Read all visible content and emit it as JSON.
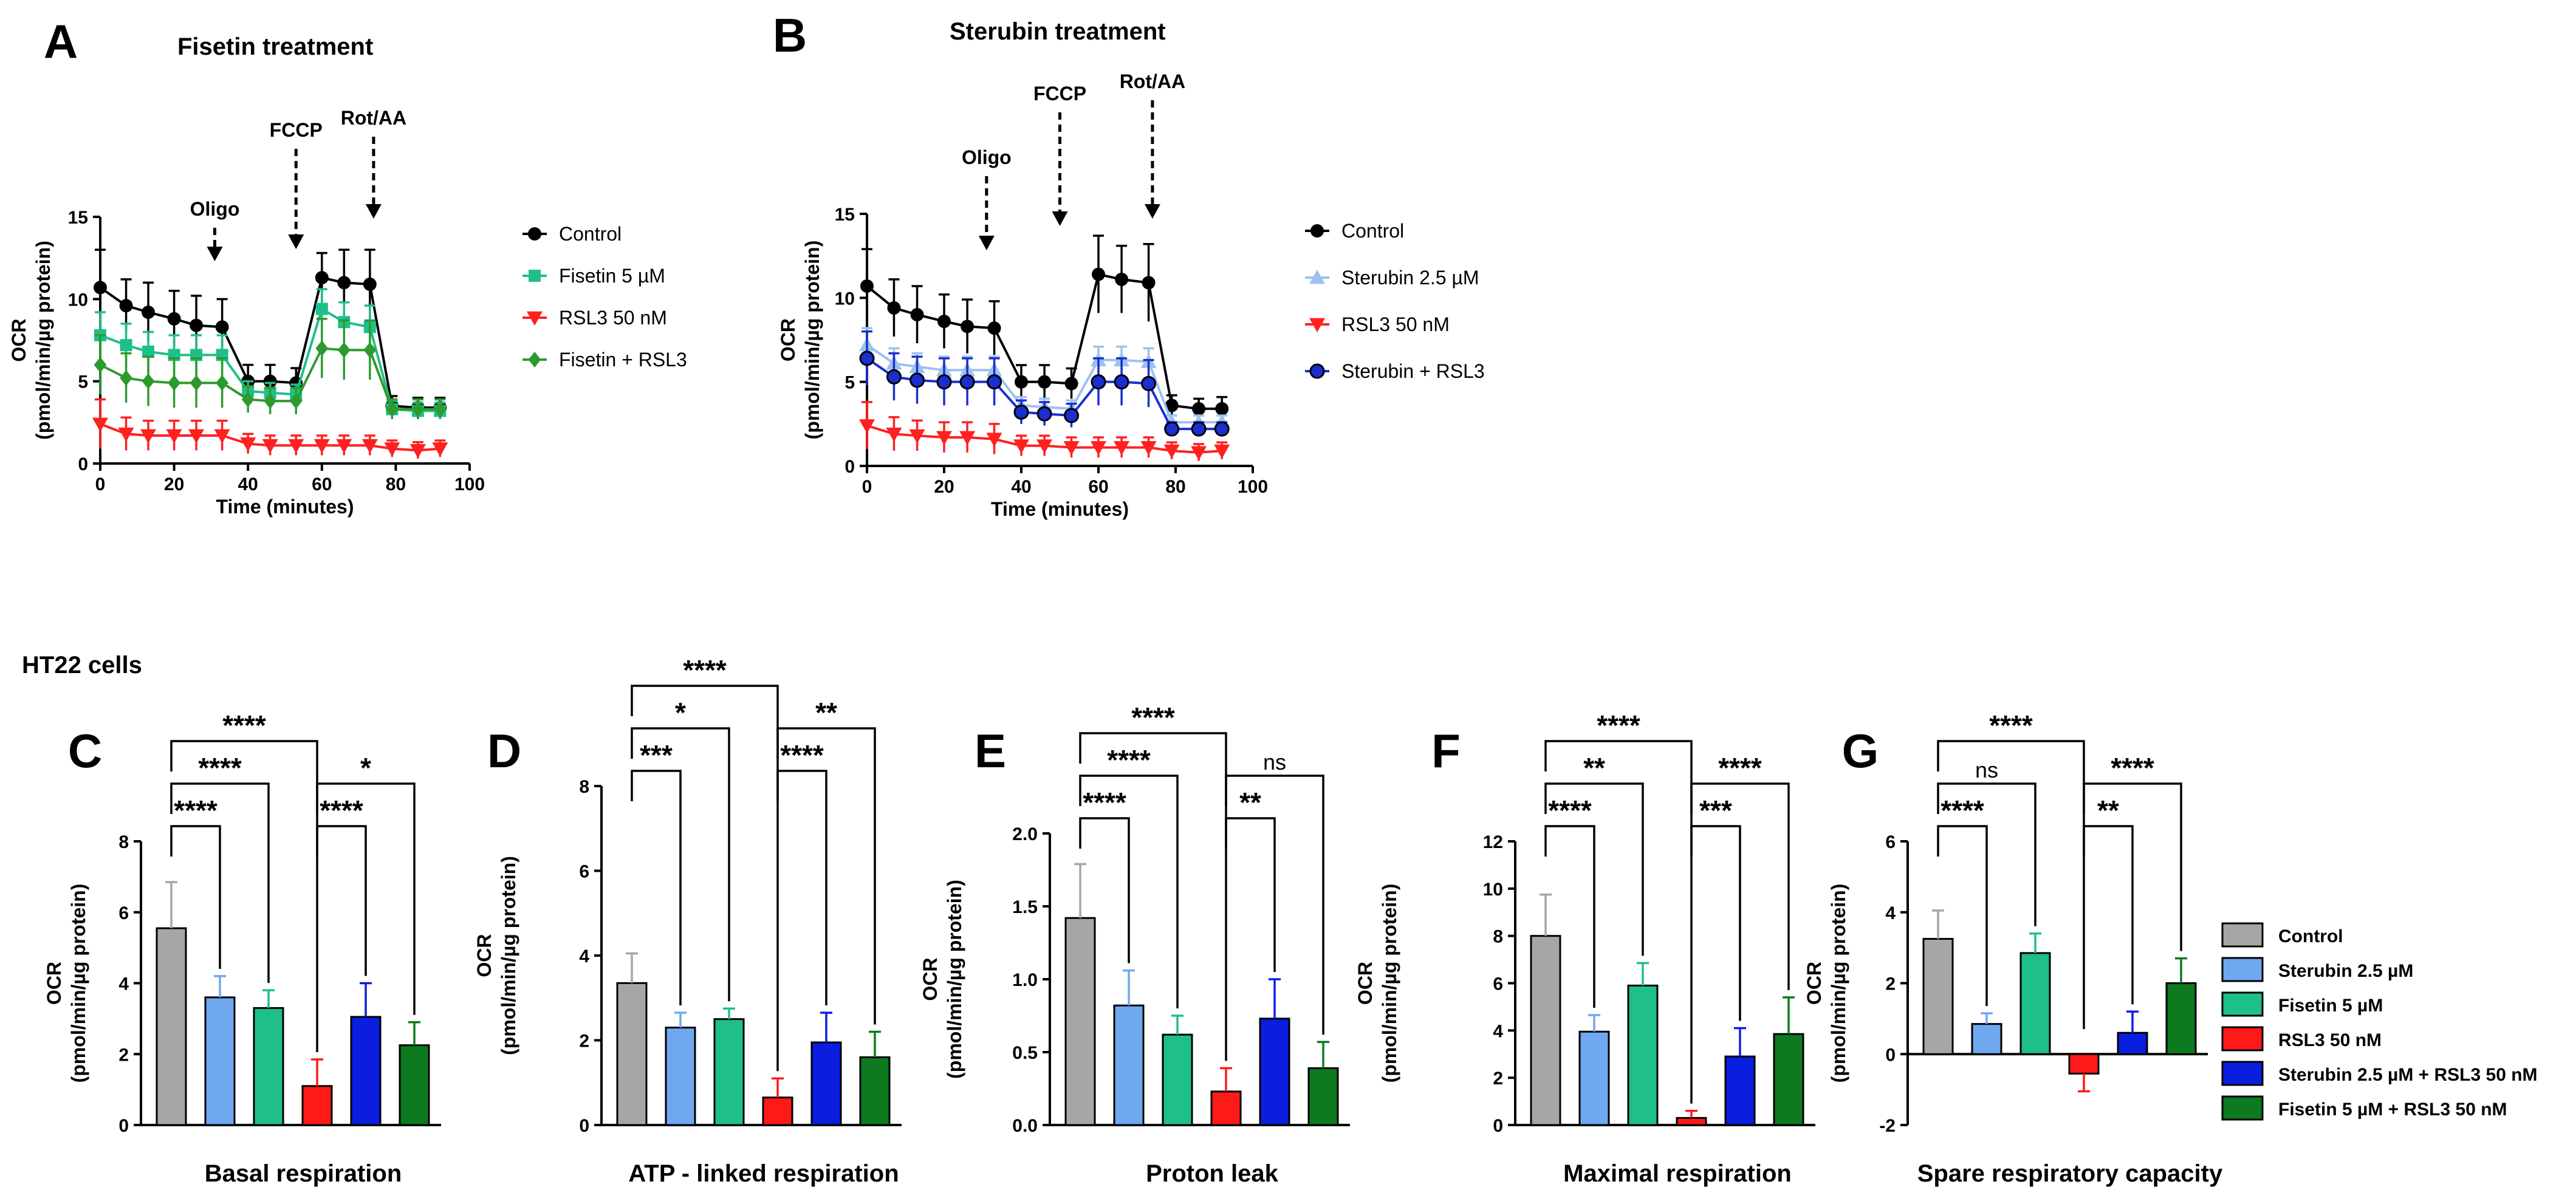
{
  "figure": {
    "section_label": "HT22 cells"
  },
  "chart_data": [
    {
      "panel": "A",
      "type": "line",
      "title": "Fisetin treatment",
      "xlabel": "Time (minutes)",
      "ylabel": [
        "OCR",
        "(pmol/min/µg protein)"
      ],
      "xlim": [
        0,
        100
      ],
      "ylim": [
        0,
        15
      ],
      "xticks": [
        0,
        20,
        40,
        60,
        80,
        100
      ],
      "yticks": [
        0,
        5,
        10,
        15
      ],
      "annotations": [
        {
          "label": "Oligo",
          "x": 31
        },
        {
          "label": "FCCP",
          "x": 53
        },
        {
          "label": "Rot/AA",
          "x": 74
        }
      ],
      "x": [
        0,
        7,
        13,
        20,
        26,
        33,
        40,
        46,
        53,
        60,
        66,
        73,
        79,
        86,
        92
      ],
      "series": [
        {
          "name": "Control",
          "color": "#000000",
          "marker": "circle",
          "values": [
            10.7,
            9.6,
            9.2,
            8.8,
            8.4,
            8.3,
            5.0,
            5.0,
            4.9,
            11.3,
            11.0,
            10.9,
            3.5,
            3.4,
            3.4
          ],
          "err": [
            2.3,
            1.6,
            1.8,
            1.7,
            1.8,
            1.7,
            1.0,
            1.0,
            0.9,
            1.5,
            2.0,
            2.1,
            0.6,
            0.6,
            0.6
          ]
        },
        {
          "name": "Fisetin 5 µM",
          "color": "#1fbf8a",
          "marker": "square",
          "values": [
            7.8,
            7.2,
            6.8,
            6.6,
            6.6,
            6.6,
            4.4,
            4.3,
            4.2,
            9.4,
            8.6,
            8.3,
            3.3,
            3.2,
            3.2
          ],
          "err": [
            1.4,
            1.3,
            1.2,
            1.2,
            1.2,
            1.2,
            0.6,
            0.6,
            0.6,
            1.2,
            1.2,
            1.3,
            0.5,
            0.5,
            0.5
          ]
        },
        {
          "name": "RSL3 50 nM",
          "color": "#ff2020",
          "marker": "triangle-down",
          "values": [
            2.4,
            1.8,
            1.7,
            1.7,
            1.7,
            1.7,
            1.2,
            1.1,
            1.1,
            1.1,
            1.1,
            1.1,
            0.9,
            0.8,
            0.9
          ],
          "err": [
            1.5,
            1.0,
            0.9,
            0.9,
            0.9,
            0.9,
            0.6,
            0.6,
            0.6,
            0.6,
            0.6,
            0.6,
            0.5,
            0.5,
            0.5
          ]
        },
        {
          "name": "Fisetin + RSL3",
          "color": "#2e9a2e",
          "marker": "diamond",
          "values": [
            6.0,
            5.2,
            5.0,
            4.9,
            4.9,
            4.9,
            3.9,
            3.8,
            3.8,
            7.0,
            6.9,
            6.9,
            3.3,
            3.3,
            3.3
          ],
          "err": [
            1.8,
            1.5,
            1.5,
            1.5,
            1.5,
            1.5,
            0.8,
            0.8,
            0.8,
            1.8,
            1.8,
            1.8,
            0.6,
            0.6,
            0.6
          ]
        }
      ]
    },
    {
      "panel": "B",
      "type": "line",
      "title": "Sterubin treatment",
      "xlabel": "Time (minutes)",
      "ylabel": [
        "OCR",
        "(pmol/min/µg protein)"
      ],
      "xlim": [
        0,
        100
      ],
      "ylim": [
        0,
        15
      ],
      "xticks": [
        0,
        20,
        40,
        60,
        80,
        100
      ],
      "yticks": [
        0,
        5,
        10,
        15
      ],
      "annotations": [
        {
          "label": "Oligo",
          "x": 31
        },
        {
          "label": "FCCP",
          "x": 50
        },
        {
          "label": "Rot/AA",
          "x": 74
        }
      ],
      "x": [
        0,
        7,
        13,
        20,
        26,
        33,
        40,
        46,
        53,
        60,
        66,
        73,
        79,
        86,
        92
      ],
      "series": [
        {
          "name": "Control",
          "color": "#000000",
          "marker": "circle",
          "values": [
            10.7,
            9.4,
            9.0,
            8.6,
            8.3,
            8.2,
            5.0,
            5.0,
            4.9,
            11.4,
            11.1,
            10.9,
            3.6,
            3.4,
            3.4
          ],
          "err": [
            2.2,
            1.7,
            1.7,
            1.6,
            1.6,
            1.6,
            1.0,
            1.0,
            0.9,
            2.3,
            2.0,
            2.3,
            0.6,
            0.6,
            0.7
          ]
        },
        {
          "name": "Sterubin 2.5 µM",
          "color": "#9bc2ef",
          "marker": "triangle-up",
          "values": [
            7.2,
            6.1,
            5.9,
            5.7,
            5.7,
            5.7,
            3.6,
            3.5,
            3.4,
            6.3,
            6.3,
            6.2,
            2.6,
            2.6,
            2.6
          ],
          "err": [
            1.0,
            0.9,
            0.8,
            0.8,
            0.8,
            0.8,
            0.5,
            0.5,
            0.5,
            0.8,
            0.8,
            0.8,
            0.4,
            0.4,
            0.4
          ]
        },
        {
          "name": "RSL3 50 nM",
          "color": "#ff2020",
          "marker": "triangle-down",
          "values": [
            2.4,
            1.9,
            1.8,
            1.7,
            1.7,
            1.6,
            1.2,
            1.2,
            1.1,
            1.1,
            1.1,
            1.1,
            0.9,
            0.8,
            0.9
          ],
          "err": [
            1.4,
            1.0,
            0.9,
            0.9,
            0.9,
            0.9,
            0.6,
            0.6,
            0.6,
            0.6,
            0.6,
            0.6,
            0.5,
            0.5,
            0.5
          ]
        },
        {
          "name": "Sterubin + RSL3",
          "color": "#1a2fcf",
          "marker": "circle-outlined",
          "values": [
            6.4,
            5.3,
            5.1,
            5.0,
            5.0,
            5.0,
            3.2,
            3.1,
            3.0,
            5.0,
            5.0,
            4.9,
            2.2,
            2.2,
            2.2
          ],
          "err": [
            1.6,
            1.4,
            1.4,
            1.4,
            1.4,
            1.4,
            0.7,
            0.7,
            0.7,
            1.4,
            1.4,
            1.4,
            0.4,
            0.4,
            0.4
          ]
        }
      ]
    },
    {
      "panel": "C",
      "type": "bar",
      "title": "Basal respiration",
      "ylabel": [
        "OCR",
        "(pmol/min/µg protein)"
      ],
      "ylim": [
        0,
        8
      ],
      "yticks": [
        0,
        2,
        4,
        6,
        8
      ],
      "values": [
        5.55,
        3.6,
        3.3,
        1.1,
        3.05,
        2.25
      ],
      "err": [
        1.3,
        0.6,
        0.5,
        0.75,
        0.95,
        0.65
      ],
      "significance": [
        {
          "from": 0,
          "to": 1,
          "label": "****",
          "level": 1
        },
        {
          "from": 0,
          "to": 2,
          "label": "****",
          "level": 2
        },
        {
          "from": 0,
          "to": 3,
          "label": "****",
          "level": 3
        },
        {
          "from": 3,
          "to": 4,
          "label": "****",
          "level": 1
        },
        {
          "from": 3,
          "to": 5,
          "label": "*",
          "level": 2
        }
      ]
    },
    {
      "panel": "D",
      "type": "bar",
      "title": "ATP - linked respiration",
      "ylabel": [
        "OCR",
        "(pmol/min/µg protein)"
      ],
      "ylim": [
        0,
        8
      ],
      "yticks": [
        0,
        2,
        4,
        6,
        8
      ],
      "values": [
        3.35,
        2.3,
        2.5,
        0.65,
        1.95,
        1.6
      ],
      "err": [
        0.7,
        0.35,
        0.25,
        0.45,
        0.7,
        0.6
      ],
      "significance": [
        {
          "from": 0,
          "to": 1,
          "label": "***",
          "level": 1
        },
        {
          "from": 0,
          "to": 2,
          "label": "*",
          "level": 2
        },
        {
          "from": 0,
          "to": 3,
          "label": "****",
          "level": 3
        },
        {
          "from": 3,
          "to": 4,
          "label": "****",
          "level": 1
        },
        {
          "from": 3,
          "to": 5,
          "label": "**",
          "level": 2
        }
      ]
    },
    {
      "panel": "E",
      "type": "bar",
      "title": "Proton leak",
      "ylabel": [
        "OCR",
        "(pmol/min/µg protein)"
      ],
      "ylim": [
        0,
        2.0
      ],
      "yticks": [
        0.0,
        0.5,
        1.0,
        1.5,
        2.0
      ],
      "ytick_labels": [
        "0.0",
        "0.5",
        "1.0",
        "1.5",
        "2.0"
      ],
      "values": [
        1.42,
        0.82,
        0.62,
        0.23,
        0.73,
        0.39
      ],
      "err": [
        0.37,
        0.24,
        0.13,
        0.16,
        0.27,
        0.18
      ],
      "significance": [
        {
          "from": 0,
          "to": 1,
          "label": "****",
          "level": 1
        },
        {
          "from": 0,
          "to": 2,
          "label": "****",
          "level": 2
        },
        {
          "from": 0,
          "to": 3,
          "label": "****",
          "level": 3
        },
        {
          "from": 3,
          "to": 4,
          "label": "**",
          "level": 1
        },
        {
          "from": 3,
          "to": 5,
          "label": "ns",
          "level": 2
        }
      ]
    },
    {
      "panel": "F",
      "type": "bar",
      "title": "Maximal respiration",
      "ylabel": [
        "OCR",
        "(pmol/min/µg protein)"
      ],
      "ylim": [
        0,
        12
      ],
      "yticks": [
        0,
        2,
        4,
        6,
        8,
        10,
        12
      ],
      "values": [
        8.0,
        3.95,
        5.9,
        0.3,
        2.9,
        3.85
      ],
      "err": [
        1.75,
        0.7,
        0.95,
        0.3,
        1.2,
        1.55
      ],
      "significance": [
        {
          "from": 0,
          "to": 1,
          "label": "****",
          "level": 1
        },
        {
          "from": 0,
          "to": 2,
          "label": "**",
          "level": 2
        },
        {
          "from": 0,
          "to": 3,
          "label": "****",
          "level": 3
        },
        {
          "from": 3,
          "to": 4,
          "label": "***",
          "level": 1
        },
        {
          "from": 3,
          "to": 5,
          "label": "****",
          "level": 2
        }
      ]
    },
    {
      "panel": "G",
      "type": "bar",
      "title": "Spare respiratory capacity",
      "ylabel": [
        "OCR",
        "(pmol/min/µg protein)"
      ],
      "ylim": [
        -2,
        6
      ],
      "yticks": [
        -2,
        0,
        2,
        4,
        6
      ],
      "values": [
        3.25,
        0.85,
        2.85,
        -0.55,
        0.6,
        2.0
      ],
      "err": [
        0.8,
        0.3,
        0.55,
        0.5,
        0.6,
        0.7
      ],
      "significance": [
        {
          "from": 0,
          "to": 1,
          "label": "****",
          "level": 1
        },
        {
          "from": 0,
          "to": 2,
          "label": "ns",
          "level": 2
        },
        {
          "from": 0,
          "to": 3,
          "label": "****",
          "level": 3
        },
        {
          "from": 3,
          "to": 4,
          "label": "**",
          "level": 1
        },
        {
          "from": 3,
          "to": 5,
          "label": "****",
          "level": 2
        }
      ]
    }
  ],
  "bar_groups": [
    {
      "name": "Control",
      "color": "#a6a6a6"
    },
    {
      "name": "Sterubin 2.5 µM",
      "color": "#6fa8ee"
    },
    {
      "name": "Fisetin 5 µM",
      "color": "#1fbf8a"
    },
    {
      "name": "RSL3 50 nM",
      "color": "#ff1a1a"
    },
    {
      "name": "Sterubin 2.5 µM + RSL3 50 nM",
      "color": "#0a1ee0"
    },
    {
      "name": "Fisetin 5 µM + RSL3 50 nM",
      "color": "#0d7a1f"
    }
  ]
}
